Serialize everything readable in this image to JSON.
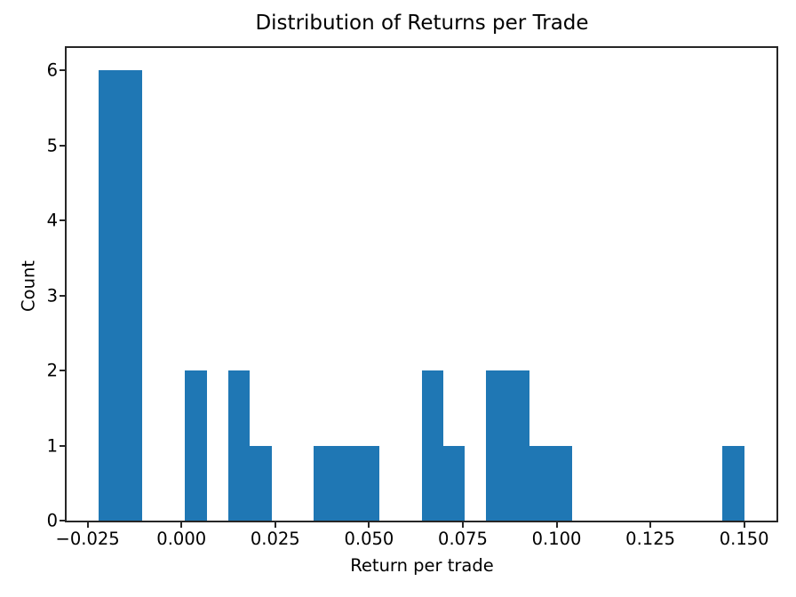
{
  "chart_data": {
    "type": "bar",
    "subtype": "histogram",
    "title": "Distribution of Returns per Trade",
    "xlabel": "Return per trade",
    "ylabel": "Count",
    "bar_color": "#1f77b4",
    "background_color": "#ffffff",
    "spine_color": "#262626",
    "grid": false,
    "legend_position": "none",
    "bin_edges": [
      -0.022,
      -0.016267,
      -0.010533,
      -0.0048,
      0.000933,
      0.006667,
      0.0124,
      0.018133,
      0.023867,
      0.0296,
      0.035333,
      0.041067,
      0.0468,
      0.052533,
      0.058267,
      0.064,
      0.069733,
      0.075467,
      0.0812,
      0.086933,
      0.092667,
      0.0984,
      0.104133,
      0.109867,
      0.1156,
      0.121333,
      0.127067,
      0.1328,
      0.138533,
      0.144267,
      0.15
    ],
    "counts": [
      6,
      6,
      0,
      0,
      2,
      0,
      2,
      1,
      0,
      0,
      1,
      1,
      1,
      0,
      0,
      2,
      1,
      0,
      2,
      2,
      1,
      1,
      0,
      0,
      0,
      0,
      0,
      0,
      0,
      1
    ],
    "xlim": [
      -0.0306,
      0.1586
    ],
    "ylim": [
      0,
      6.3
    ],
    "xticks": [
      -0.025,
      0,
      0.025,
      0.05,
      0.075,
      0.1,
      0.125,
      0.15
    ],
    "xtick_labels": [
      "−0.025",
      "0.000",
      "0.025",
      "0.050",
      "0.075",
      "0.100",
      "0.125",
      "0.150"
    ],
    "yticks": [
      0,
      1,
      2,
      3,
      4,
      5,
      6
    ],
    "ytick_labels": [
      "0",
      "1",
      "2",
      "3",
      "4",
      "5",
      "6"
    ]
  }
}
